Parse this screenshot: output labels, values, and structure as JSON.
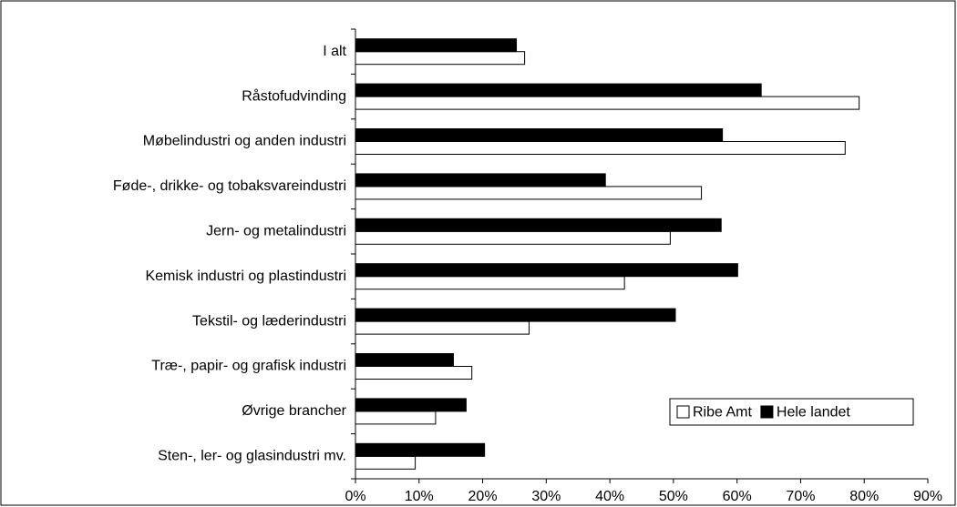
{
  "chart_data": {
    "type": "hbar",
    "categories": [
      "I alt",
      "Råstofudvinding",
      "Møbelindustri og anden industri",
      "Føde-, drikke- og tobaksvareindustri",
      "Jern- og metalindustri",
      "Kemisk industri og  plastindustri",
      "Tekstil- og læderindustri",
      "Træ-, papir- og grafisk industri",
      "Øvrige brancher",
      "Sten-, ler- og glasindustri mv."
    ],
    "series": [
      {
        "name": "Ribe Amt",
        "color": "#ffffff",
        "values": [
          26.6,
          79.2,
          77.0,
          54.4,
          49.5,
          42.3,
          27.3,
          18.3,
          12.6,
          9.4
        ]
      },
      {
        "name": "Hele landet",
        "color": "#000000",
        "values": [
          25.3,
          63.8,
          57.7,
          39.3,
          57.5,
          60.1,
          50.3,
          15.4,
          17.4,
          20.3
        ]
      }
    ],
    "xlim": [
      0,
      90
    ],
    "xticks": [
      {
        "value": 0,
        "label": "0%"
      },
      {
        "value": 10,
        "label": "10%"
      },
      {
        "value": 20,
        "label": "20%"
      },
      {
        "value": 30,
        "label": "30%"
      },
      {
        "value": 40,
        "label": "40%"
      },
      {
        "value": 50,
        "label": "50%"
      },
      {
        "value": 60,
        "label": "60%"
      },
      {
        "value": 70,
        "label": "70%"
      },
      {
        "value": 80,
        "label": "80%"
      },
      {
        "value": 90,
        "label": "90%"
      }
    ],
    "legend": "lower right",
    "grid": false
  }
}
